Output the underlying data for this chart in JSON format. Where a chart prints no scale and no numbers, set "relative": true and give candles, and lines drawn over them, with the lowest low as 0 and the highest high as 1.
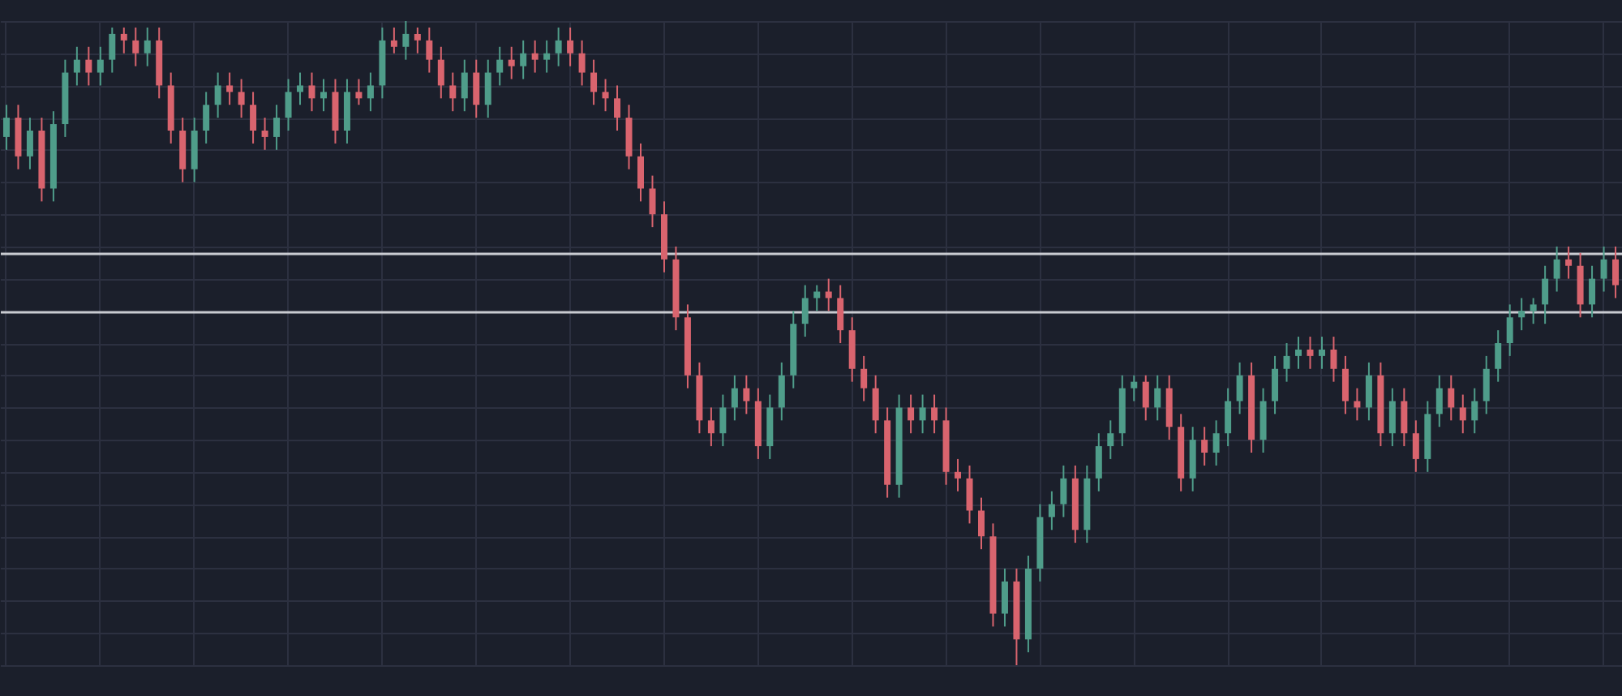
{
  "chart_data": {
    "type": "candlestick",
    "relative": true,
    "grid": true,
    "categories": [
      null,
      null,
      null,
      null,
      null,
      null,
      null,
      null,
      null,
      null,
      null,
      null,
      null,
      null,
      null,
      null,
      null,
      null,
      null,
      null,
      null,
      null,
      null,
      null,
      null,
      null,
      null,
      null,
      null,
      null,
      null,
      null,
      null,
      null,
      null,
      null,
      null,
      null,
      null,
      null,
      null,
      null,
      null,
      null,
      null,
      null,
      null,
      null,
      null,
      null,
      null,
      null,
      null,
      null,
      null,
      null,
      null,
      null,
      null,
      null,
      null,
      null,
      null,
      null,
      null,
      null,
      null,
      null,
      null,
      null,
      null,
      null,
      null,
      null,
      null,
      null,
      null,
      null,
      null,
      null,
      null,
      null,
      null,
      null,
      null,
      null,
      null,
      null,
      null,
      null,
      null,
      null,
      null,
      null,
      null,
      null,
      null,
      null,
      null,
      null,
      null,
      null,
      null,
      null,
      null,
      null,
      null,
      null,
      null,
      null,
      null,
      null,
      null,
      null,
      null,
      null,
      null,
      null,
      null,
      null,
      null,
      null,
      null,
      null,
      null,
      null,
      null,
      null,
      null,
      null,
      null,
      null,
      null,
      null,
      null,
      null,
      null,
      null
    ],
    "ohlc": [
      [
        0.82,
        0.87,
        0.8,
        0.85
      ],
      [
        0.85,
        0.87,
        0.77,
        0.79
      ],
      [
        0.79,
        0.85,
        0.77,
        0.83
      ],
      [
        0.83,
        0.85,
        0.72,
        0.74
      ],
      [
        0.74,
        0.86,
        0.72,
        0.84
      ],
      [
        0.84,
        0.94,
        0.82,
        0.92
      ],
      [
        0.92,
        0.96,
        0.9,
        0.94
      ],
      [
        0.94,
        0.96,
        0.9,
        0.92
      ],
      [
        0.92,
        0.96,
        0.9,
        0.94
      ],
      [
        0.94,
        0.99,
        0.92,
        0.98
      ],
      [
        0.98,
        0.99,
        0.95,
        0.97
      ],
      [
        0.97,
        0.99,
        0.93,
        0.95
      ],
      [
        0.95,
        0.99,
        0.93,
        0.97
      ],
      [
        0.97,
        0.99,
        0.88,
        0.9
      ],
      [
        0.9,
        0.92,
        0.81,
        0.83
      ],
      [
        0.83,
        0.85,
        0.75,
        0.77
      ],
      [
        0.77,
        0.85,
        0.75,
        0.83
      ],
      [
        0.83,
        0.89,
        0.81,
        0.87
      ],
      [
        0.87,
        0.92,
        0.85,
        0.9
      ],
      [
        0.9,
        0.92,
        0.87,
        0.89
      ],
      [
        0.89,
        0.91,
        0.85,
        0.87
      ],
      [
        0.87,
        0.89,
        0.81,
        0.83
      ],
      [
        0.83,
        0.85,
        0.8,
        0.82
      ],
      [
        0.82,
        0.87,
        0.8,
        0.85
      ],
      [
        0.85,
        0.91,
        0.83,
        0.89
      ],
      [
        0.89,
        0.92,
        0.87,
        0.9
      ],
      [
        0.9,
        0.92,
        0.86,
        0.88
      ],
      [
        0.88,
        0.91,
        0.86,
        0.89
      ],
      [
        0.89,
        0.91,
        0.81,
        0.83
      ],
      [
        0.83,
        0.91,
        0.81,
        0.89
      ],
      [
        0.89,
        0.91,
        0.87,
        0.88
      ],
      [
        0.88,
        0.92,
        0.86,
        0.9
      ],
      [
        0.9,
        0.99,
        0.88,
        0.97
      ],
      [
        0.97,
        0.99,
        0.95,
        0.96
      ],
      [
        0.96,
        1.0,
        0.94,
        0.98
      ],
      [
        0.98,
        0.99,
        0.95,
        0.97
      ],
      [
        0.97,
        0.99,
        0.92,
        0.94
      ],
      [
        0.94,
        0.96,
        0.88,
        0.9
      ],
      [
        0.9,
        0.92,
        0.86,
        0.88
      ],
      [
        0.88,
        0.94,
        0.86,
        0.92
      ],
      [
        0.92,
        0.94,
        0.85,
        0.87
      ],
      [
        0.87,
        0.94,
        0.85,
        0.92
      ],
      [
        0.92,
        0.96,
        0.9,
        0.94
      ],
      [
        0.94,
        0.96,
        0.91,
        0.93
      ],
      [
        0.93,
        0.97,
        0.91,
        0.95
      ],
      [
        0.95,
        0.97,
        0.92,
        0.94
      ],
      [
        0.94,
        0.97,
        0.92,
        0.95
      ],
      [
        0.95,
        0.99,
        0.93,
        0.97
      ],
      [
        0.97,
        0.99,
        0.93,
        0.95
      ],
      [
        0.95,
        0.97,
        0.9,
        0.92
      ],
      [
        0.92,
        0.94,
        0.87,
        0.89
      ],
      [
        0.89,
        0.91,
        0.86,
        0.88
      ],
      [
        0.88,
        0.9,
        0.83,
        0.85
      ],
      [
        0.85,
        0.87,
        0.77,
        0.79
      ],
      [
        0.79,
        0.81,
        0.72,
        0.74
      ],
      [
        0.74,
        0.76,
        0.68,
        0.7
      ],
      [
        0.7,
        0.72,
        0.61,
        0.63
      ],
      [
        0.63,
        0.65,
        0.52,
        0.54
      ],
      [
        0.54,
        0.56,
        0.43,
        0.45
      ],
      [
        0.45,
        0.47,
        0.36,
        0.38
      ],
      [
        0.38,
        0.4,
        0.34,
        0.36
      ],
      [
        0.36,
        0.42,
        0.34,
        0.4
      ],
      [
        0.4,
        0.45,
        0.38,
        0.43
      ],
      [
        0.43,
        0.45,
        0.39,
        0.41
      ],
      [
        0.41,
        0.43,
        0.32,
        0.34
      ],
      [
        0.34,
        0.42,
        0.32,
        0.4
      ],
      [
        0.4,
        0.47,
        0.38,
        0.45
      ],
      [
        0.45,
        0.55,
        0.43,
        0.53
      ],
      [
        0.53,
        0.59,
        0.51,
        0.57
      ],
      [
        0.57,
        0.59,
        0.55,
        0.58
      ],
      [
        0.58,
        0.6,
        0.55,
        0.57
      ],
      [
        0.57,
        0.59,
        0.5,
        0.52
      ],
      [
        0.52,
        0.54,
        0.44,
        0.46
      ],
      [
        0.46,
        0.48,
        0.41,
        0.43
      ],
      [
        0.43,
        0.45,
        0.36,
        0.38
      ],
      [
        0.38,
        0.4,
        0.26,
        0.28
      ],
      [
        0.28,
        0.42,
        0.26,
        0.4
      ],
      [
        0.4,
        0.42,
        0.36,
        0.38
      ],
      [
        0.38,
        0.42,
        0.36,
        0.4
      ],
      [
        0.4,
        0.42,
        0.36,
        0.38
      ],
      [
        0.38,
        0.4,
        0.28,
        0.3
      ],
      [
        0.3,
        0.32,
        0.27,
        0.29
      ],
      [
        0.29,
        0.31,
        0.22,
        0.24
      ],
      [
        0.24,
        0.26,
        0.18,
        0.2
      ],
      [
        0.2,
        0.22,
        0.06,
        0.08
      ],
      [
        0.08,
        0.15,
        0.06,
        0.13
      ],
      [
        0.13,
        0.15,
        0.0,
        0.04
      ],
      [
        0.04,
        0.17,
        0.02,
        0.15
      ],
      [
        0.15,
        0.25,
        0.13,
        0.23
      ],
      [
        0.23,
        0.27,
        0.21,
        0.25
      ],
      [
        0.25,
        0.31,
        0.23,
        0.29
      ],
      [
        0.29,
        0.31,
        0.19,
        0.21
      ],
      [
        0.21,
        0.31,
        0.19,
        0.29
      ],
      [
        0.29,
        0.36,
        0.27,
        0.34
      ],
      [
        0.34,
        0.38,
        0.32,
        0.36
      ],
      [
        0.36,
        0.45,
        0.34,
        0.43
      ],
      [
        0.43,
        0.45,
        0.41,
        0.44
      ],
      [
        0.44,
        0.45,
        0.38,
        0.4
      ],
      [
        0.4,
        0.45,
        0.38,
        0.43
      ],
      [
        0.43,
        0.45,
        0.35,
        0.37
      ],
      [
        0.37,
        0.39,
        0.27,
        0.29
      ],
      [
        0.29,
        0.37,
        0.27,
        0.35
      ],
      [
        0.35,
        0.37,
        0.31,
        0.33
      ],
      [
        0.33,
        0.38,
        0.31,
        0.36
      ],
      [
        0.36,
        0.43,
        0.34,
        0.41
      ],
      [
        0.41,
        0.47,
        0.39,
        0.45
      ],
      [
        0.45,
        0.47,
        0.33,
        0.35
      ],
      [
        0.35,
        0.43,
        0.33,
        0.41
      ],
      [
        0.41,
        0.48,
        0.39,
        0.46
      ],
      [
        0.46,
        0.5,
        0.44,
        0.48
      ],
      [
        0.48,
        0.51,
        0.46,
        0.49
      ],
      [
        0.49,
        0.51,
        0.46,
        0.48
      ],
      [
        0.48,
        0.51,
        0.46,
        0.49
      ],
      [
        0.49,
        0.51,
        0.44,
        0.46
      ],
      [
        0.46,
        0.48,
        0.39,
        0.41
      ],
      [
        0.41,
        0.43,
        0.38,
        0.4
      ],
      [
        0.4,
        0.47,
        0.38,
        0.45
      ],
      [
        0.45,
        0.47,
        0.34,
        0.36
      ],
      [
        0.36,
        0.43,
        0.34,
        0.41
      ],
      [
        0.41,
        0.43,
        0.34,
        0.36
      ],
      [
        0.36,
        0.38,
        0.3,
        0.32
      ],
      [
        0.32,
        0.41,
        0.3,
        0.39
      ],
      [
        0.39,
        0.45,
        0.37,
        0.43
      ],
      [
        0.43,
        0.45,
        0.38,
        0.4
      ],
      [
        0.4,
        0.42,
        0.36,
        0.38
      ],
      [
        0.38,
        0.43,
        0.36,
        0.41
      ],
      [
        0.41,
        0.48,
        0.39,
        0.46
      ],
      [
        0.46,
        0.52,
        0.44,
        0.5
      ],
      [
        0.5,
        0.56,
        0.48,
        0.54
      ],
      [
        0.54,
        0.57,
        0.52,
        0.55
      ],
      [
        0.55,
        0.57,
        0.53,
        0.56
      ],
      [
        0.56,
        0.62,
        0.53,
        0.6
      ],
      [
        0.6,
        0.65,
        0.58,
        0.63
      ],
      [
        0.63,
        0.65,
        0.6,
        0.62
      ],
      [
        0.62,
        0.64,
        0.54,
        0.56
      ],
      [
        0.56,
        0.62,
        0.54,
        0.6
      ],
      [
        0.6,
        0.65,
        0.58,
        0.63
      ],
      [
        0.63,
        0.65,
        0.57,
        0.59
      ]
    ],
    "ref_lines": [
      {
        "axis": "y",
        "value": 0.64,
        "color": "#c9cbd1"
      },
      {
        "axis": "y",
        "value": 0.55,
        "color": "#c9cbd1"
      }
    ]
  }
}
